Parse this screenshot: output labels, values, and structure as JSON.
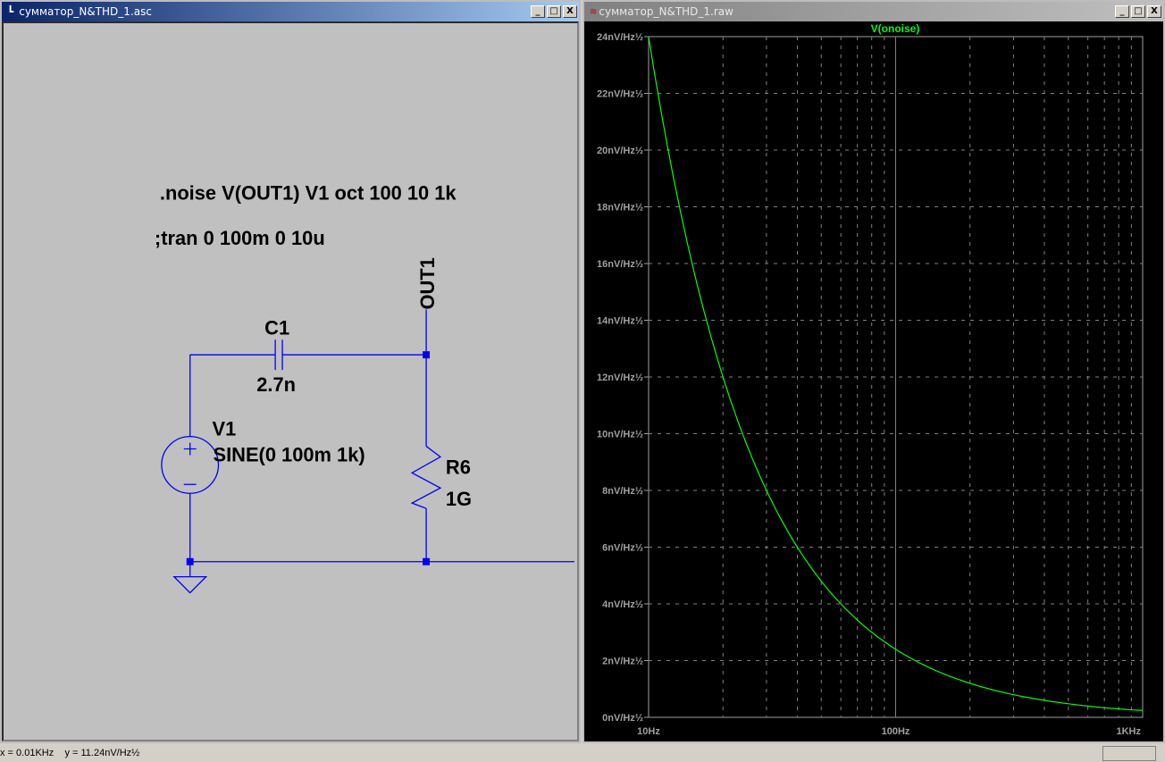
{
  "schematic_window": {
    "title": "сумматор_N&THD_1.asc",
    "buttons": [
      "_",
      "□",
      "X"
    ],
    "directives": [
      ".noise V(OUT1) V1 oct 100 10 1k",
      ";tran 0 100m 0 10u"
    ],
    "net_label": "OUT1",
    "components": {
      "c1": {
        "name": "C1",
        "value": "2.7n"
      },
      "v1": {
        "name": "V1",
        "value": "SINE(0 100m 1k)"
      },
      "r6": {
        "name": "R6",
        "value": "1G"
      }
    },
    "wire_color": "#0000ff",
    "background": "#c0c0c0"
  },
  "plot_window": {
    "title": "сумматор_N&THD_1.raw",
    "buttons": [
      "_",
      "□",
      "X"
    ]
  },
  "chart_data": {
    "type": "line",
    "title": "",
    "xscale": "log",
    "xlim": [
      10,
      1000
    ],
    "ylim": [
      0,
      24
    ],
    "grid": true,
    "x_ticks": [
      "10Hz",
      "100Hz",
      "1KHz"
    ],
    "y_ticks": [
      "0nV/Hz½",
      "2nV/Hz½",
      "4nV/Hz½",
      "6nV/Hz½",
      "8nV/Hz½",
      "10nV/Hz½",
      "12nV/Hz½",
      "14nV/Hz½",
      "16nV/Hz½",
      "18nV/Hz½",
      "20nV/Hz½",
      "22nV/Hz½",
      "24nV/Hz½"
    ],
    "series": [
      {
        "name": "V(onoise)",
        "color": "#00ff00",
        "x": [
          10,
          12,
          15,
          20,
          25,
          30,
          40,
          50,
          70,
          100,
          150,
          200,
          300,
          500,
          700,
          1000
        ],
        "y": [
          24,
          20,
          16,
          12,
          9.6,
          8,
          6,
          4.8,
          3.43,
          2.4,
          1.6,
          1.2,
          0.8,
          0.48,
          0.34,
          0.24
        ]
      }
    ]
  },
  "status": {
    "text": "x = 0.01KHz    y = 11.24nV/Hz½"
  }
}
